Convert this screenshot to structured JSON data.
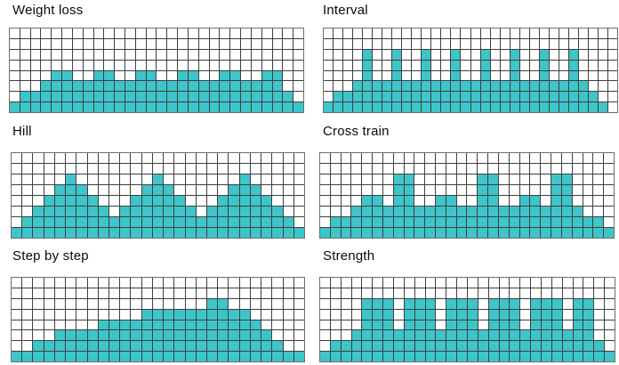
{
  "figure": {
    "description_titles": [
      "Weight loss",
      "Interval",
      "Hill",
      "Cross train",
      "Step by step",
      "Strength"
    ]
  },
  "colors": {
    "fill": "#3dc5ca",
    "empty": "#ffffff",
    "grid_line": "#3f3f3f",
    "outer_border": "#6e6e6e",
    "title_text": "#0a0a0a",
    "background": "#ffffff"
  },
  "chart_data": [
    {
      "type": "bar",
      "title": "Weight loss",
      "rows": 8,
      "columns": 28,
      "ylim": [
        0,
        8
      ],
      "values": [
        1,
        2,
        2,
        3,
        4,
        4,
        3,
        3,
        4,
        4,
        3,
        3,
        4,
        4,
        3,
        3,
        4,
        4,
        3,
        3,
        4,
        4,
        3,
        3,
        4,
        4,
        2,
        1
      ]
    },
    {
      "type": "bar",
      "title": "Interval",
      "rows": 8,
      "columns": 30,
      "ylim": [
        0,
        8
      ],
      "values": [
        1,
        2,
        2,
        3,
        6,
        3,
        3,
        6,
        3,
        3,
        6,
        3,
        3,
        6,
        3,
        3,
        6,
        3,
        3,
        6,
        3,
        3,
        6,
        3,
        3,
        6,
        3,
        2,
        1,
        0
      ]
    },
    {
      "type": "bar",
      "title": "Hill",
      "rows": 8,
      "columns": 27,
      "ylim": [
        0,
        8
      ],
      "values": [
        1,
        2,
        3,
        4,
        5,
        6,
        5,
        4,
        3,
        2,
        3,
        4,
        5,
        6,
        5,
        4,
        3,
        2,
        3,
        4,
        5,
        6,
        5,
        4,
        3,
        2,
        1
      ]
    },
    {
      "type": "bar",
      "title": "Cross train",
      "rows": 8,
      "columns": 28,
      "ylim": [
        0,
        8
      ],
      "values": [
        1,
        2,
        2,
        3,
        4,
        4,
        3,
        6,
        6,
        3,
        3,
        4,
        4,
        3,
        3,
        6,
        6,
        3,
        3,
        4,
        4,
        3,
        6,
        6,
        3,
        2,
        2,
        1
      ]
    },
    {
      "type": "bar",
      "title": "Step by step",
      "rows": 8,
      "columns": 27,
      "ylim": [
        0,
        8
      ],
      "values": [
        1,
        1,
        2,
        2,
        3,
        3,
        3,
        3,
        4,
        4,
        4,
        4,
        5,
        5,
        5,
        5,
        5,
        5,
        6,
        6,
        5,
        5,
        4,
        3,
        2,
        1,
        1
      ]
    },
    {
      "type": "bar",
      "title": "Strength",
      "rows": 8,
      "columns": 28,
      "ylim": [
        0,
        8
      ],
      "values": [
        1,
        2,
        2,
        3,
        6,
        6,
        6,
        3,
        6,
        6,
        6,
        3,
        6,
        6,
        6,
        3,
        6,
        6,
        6,
        3,
        6,
        6,
        6,
        3,
        6,
        6,
        2,
        1
      ]
    }
  ]
}
